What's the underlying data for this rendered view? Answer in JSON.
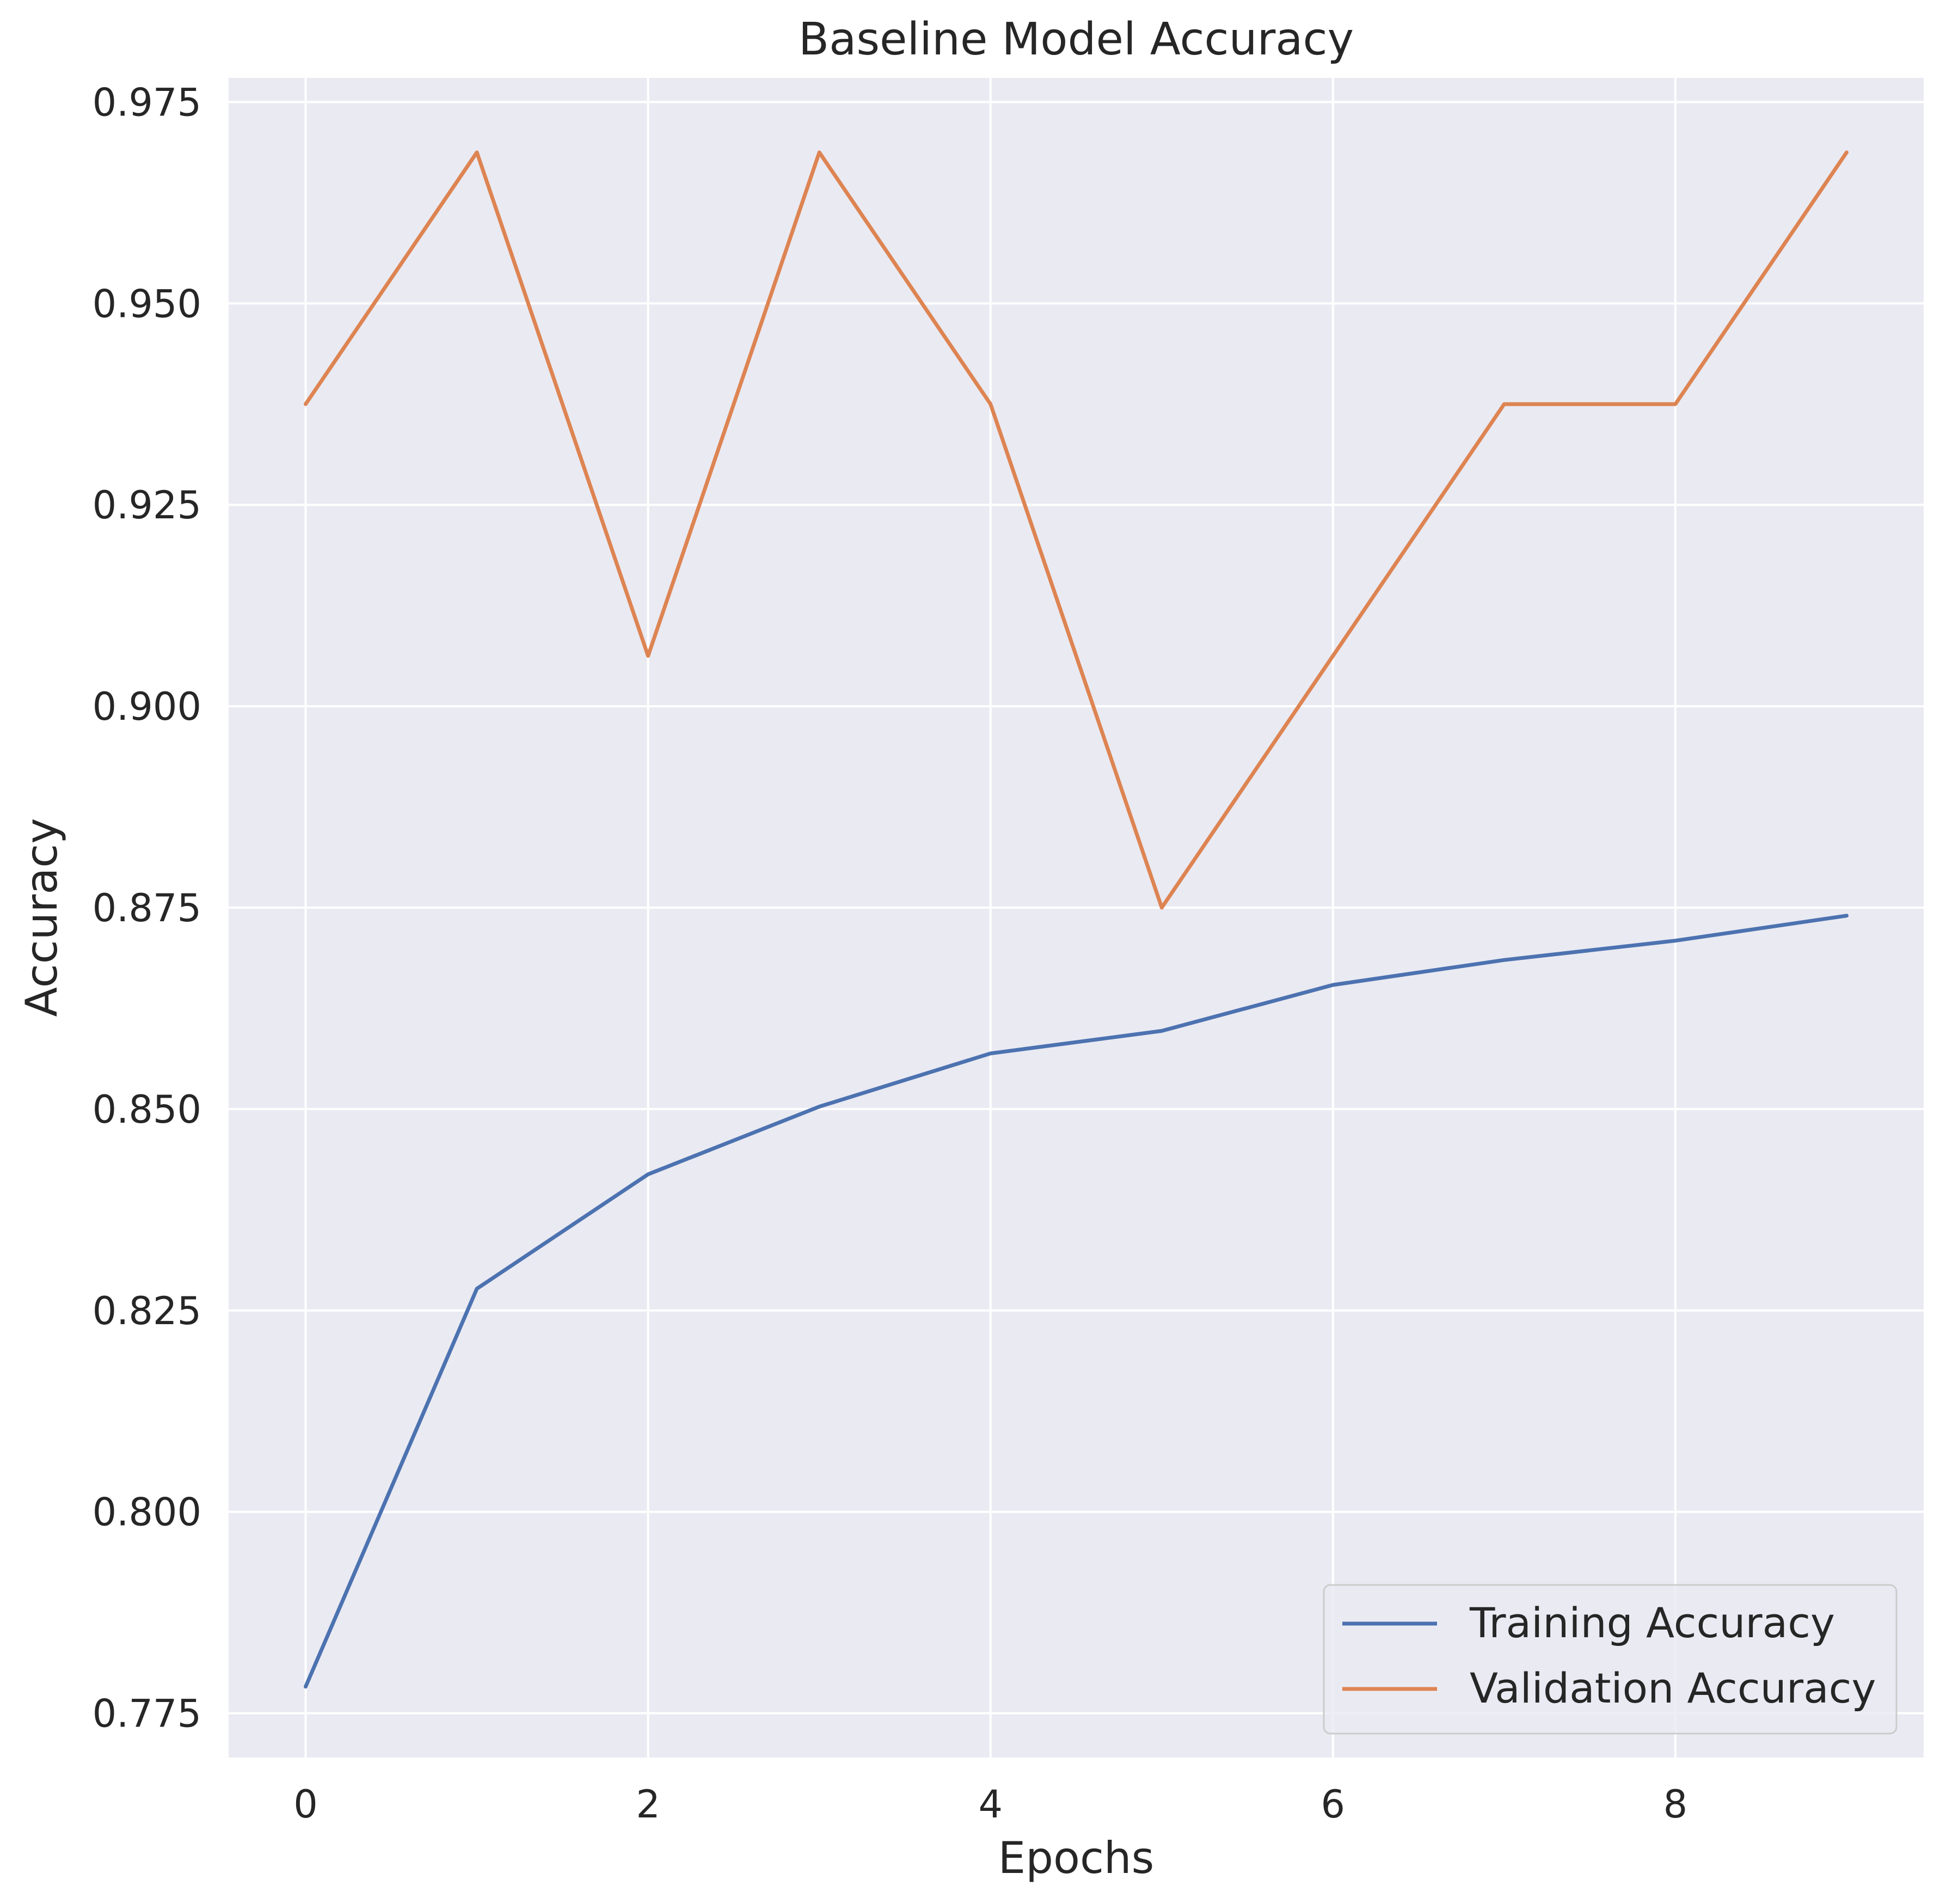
{
  "chart_data": {
    "type": "line",
    "title": "Baseline Model Accuracy",
    "xlabel": "Epochs",
    "ylabel": "Accuracy",
    "x": [
      0,
      1,
      2,
      3,
      4,
      5,
      6,
      7,
      8,
      9
    ],
    "xlim": [
      -0.45,
      9.45
    ],
    "ylim": [
      0.7695,
      0.978
    ],
    "xticks": [
      0,
      2,
      4,
      6,
      8
    ],
    "xtick_labels": [
      "0",
      "2",
      "4",
      "6",
      "8"
    ],
    "yticks": [
      0.775,
      0.8,
      0.825,
      0.85,
      0.875,
      0.9,
      0.925,
      0.95,
      0.975
    ],
    "ytick_labels": [
      "0.775",
      "0.800",
      "0.825",
      "0.850",
      "0.875",
      "0.900",
      "0.925",
      "0.950",
      "0.975"
    ],
    "grid": true,
    "legend_position": "lower right",
    "colors": {
      "plot_background": "#EAEAF2",
      "grid": "#FFFFFF",
      "text": "#262626"
    },
    "series": [
      {
        "name": "Training Accuracy",
        "color": "#4C72B0",
        "values": [
          0.7783,
          0.8277,
          0.8419,
          0.8503,
          0.8569,
          0.8597,
          0.8654,
          0.8685,
          0.8709,
          0.874
        ]
      },
      {
        "name": "Validation Accuracy",
        "color": "#DD8452",
        "values": [
          0.9375,
          0.96875,
          0.90625,
          0.96875,
          0.9375,
          0.875,
          0.90625,
          0.9375,
          0.9375,
          0.96875
        ]
      }
    ]
  }
}
